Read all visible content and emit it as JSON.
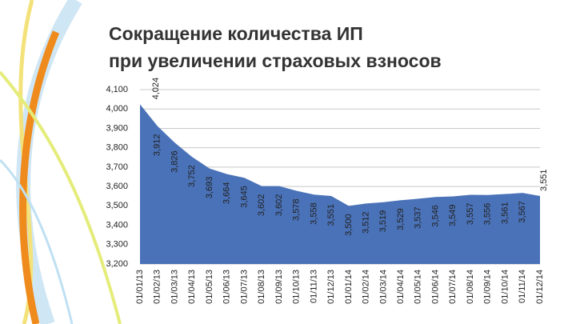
{
  "chart_data": {
    "type": "area",
    "title": [
      "Сокращение количества ИП",
      "при увеличении страховых взносов"
    ],
    "categories": [
      "01/01/13",
      "01/02/13",
      "01/03/13",
      "01/04/13",
      "01/05/13",
      "01/06/13",
      "01/07/13",
      "01/08/13",
      "01/09/13",
      "01/10/13",
      "01/11/13",
      "01/12/13",
      "01/01/14",
      "01/02/14",
      "01/03/14",
      "01/04/14",
      "01/05/14",
      "01/06/14",
      "01/07/14",
      "01/08/14",
      "01/09/14",
      "01/10/14",
      "01/11/14",
      "01/12/14"
    ],
    "values": [
      4024,
      3912,
      3826,
      3752,
      3693,
      3664,
      3645,
      3602,
      3602,
      3578,
      3558,
      3551,
      3500,
      3512,
      3519,
      3529,
      3537,
      3546,
      3549,
      3557,
      3556,
      3561,
      3567,
      3551
    ],
    "value_labels": [
      "4,024",
      "3,912",
      "3,826",
      "3,752",
      "3,693",
      "3,664",
      "3,645",
      "3,602",
      "3,602",
      "3,578",
      "3,558",
      "3,551",
      "3,500",
      "3,512",
      "3,519",
      "3,529",
      "3,537",
      "3,546",
      "3,549",
      "3,557",
      "3,556",
      "3,561",
      "3,567",
      "3,551"
    ],
    "color": "#4a72b8",
    "ylim": [
      3200,
      4100
    ],
    "yticks": [
      {
        "value": 3200,
        "label": "3,200"
      },
      {
        "value": 3300,
        "label": "3,300"
      },
      {
        "value": 3400,
        "label": "3,400"
      },
      {
        "value": 3500,
        "label": "3,500"
      },
      {
        "value": 3600,
        "label": "3,600"
      },
      {
        "value": 3700,
        "label": "3,700"
      },
      {
        "value": 3800,
        "label": "3,800"
      },
      {
        "value": 3900,
        "label": "3,900"
      },
      {
        "value": 4000,
        "label": "4,000"
      },
      {
        "value": 4100,
        "label": "4,100"
      }
    ],
    "grid": true
  }
}
